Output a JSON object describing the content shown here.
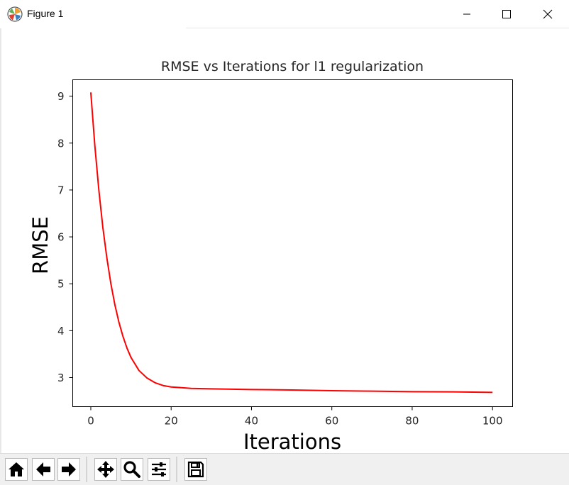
{
  "window": {
    "title": "Figure 1",
    "icon": "matplotlib-icon",
    "controls": [
      "minimize-icon",
      "maximize-icon",
      "close-icon"
    ]
  },
  "toolbar": {
    "buttons": [
      "home-icon",
      "back-arrow-icon",
      "forward-arrow-icon",
      "pan-icon",
      "zoom-icon",
      "configure-subplots-icon",
      "save-icon"
    ]
  },
  "chart_data": {
    "type": "line",
    "title": "RMSE vs Iterations for l1 regularization",
    "xlabel": "Iterations",
    "ylabel": "RMSE",
    "xlim": [
      -4.5,
      105
    ],
    "ylim": [
      2.38,
      9.35
    ],
    "xticks": [
      0,
      20,
      40,
      60,
      80,
      100
    ],
    "yticks": [
      3,
      4,
      5,
      6,
      7,
      8,
      9
    ],
    "grid": false,
    "series": [
      {
        "color": "#ff0000",
        "x": [
          0,
          1,
          2,
          3,
          4,
          5,
          6,
          7,
          8,
          9,
          10,
          12,
          14,
          16,
          18,
          20,
          25,
          30,
          40,
          50,
          60,
          70,
          80,
          90,
          100
        ],
        "y": [
          9.08,
          7.95,
          7.0,
          6.2,
          5.55,
          5.0,
          4.55,
          4.18,
          3.88,
          3.63,
          3.43,
          3.15,
          2.99,
          2.89,
          2.83,
          2.8,
          2.77,
          2.76,
          2.745,
          2.735,
          2.72,
          2.71,
          2.7,
          2.695,
          2.685
        ]
      }
    ]
  }
}
